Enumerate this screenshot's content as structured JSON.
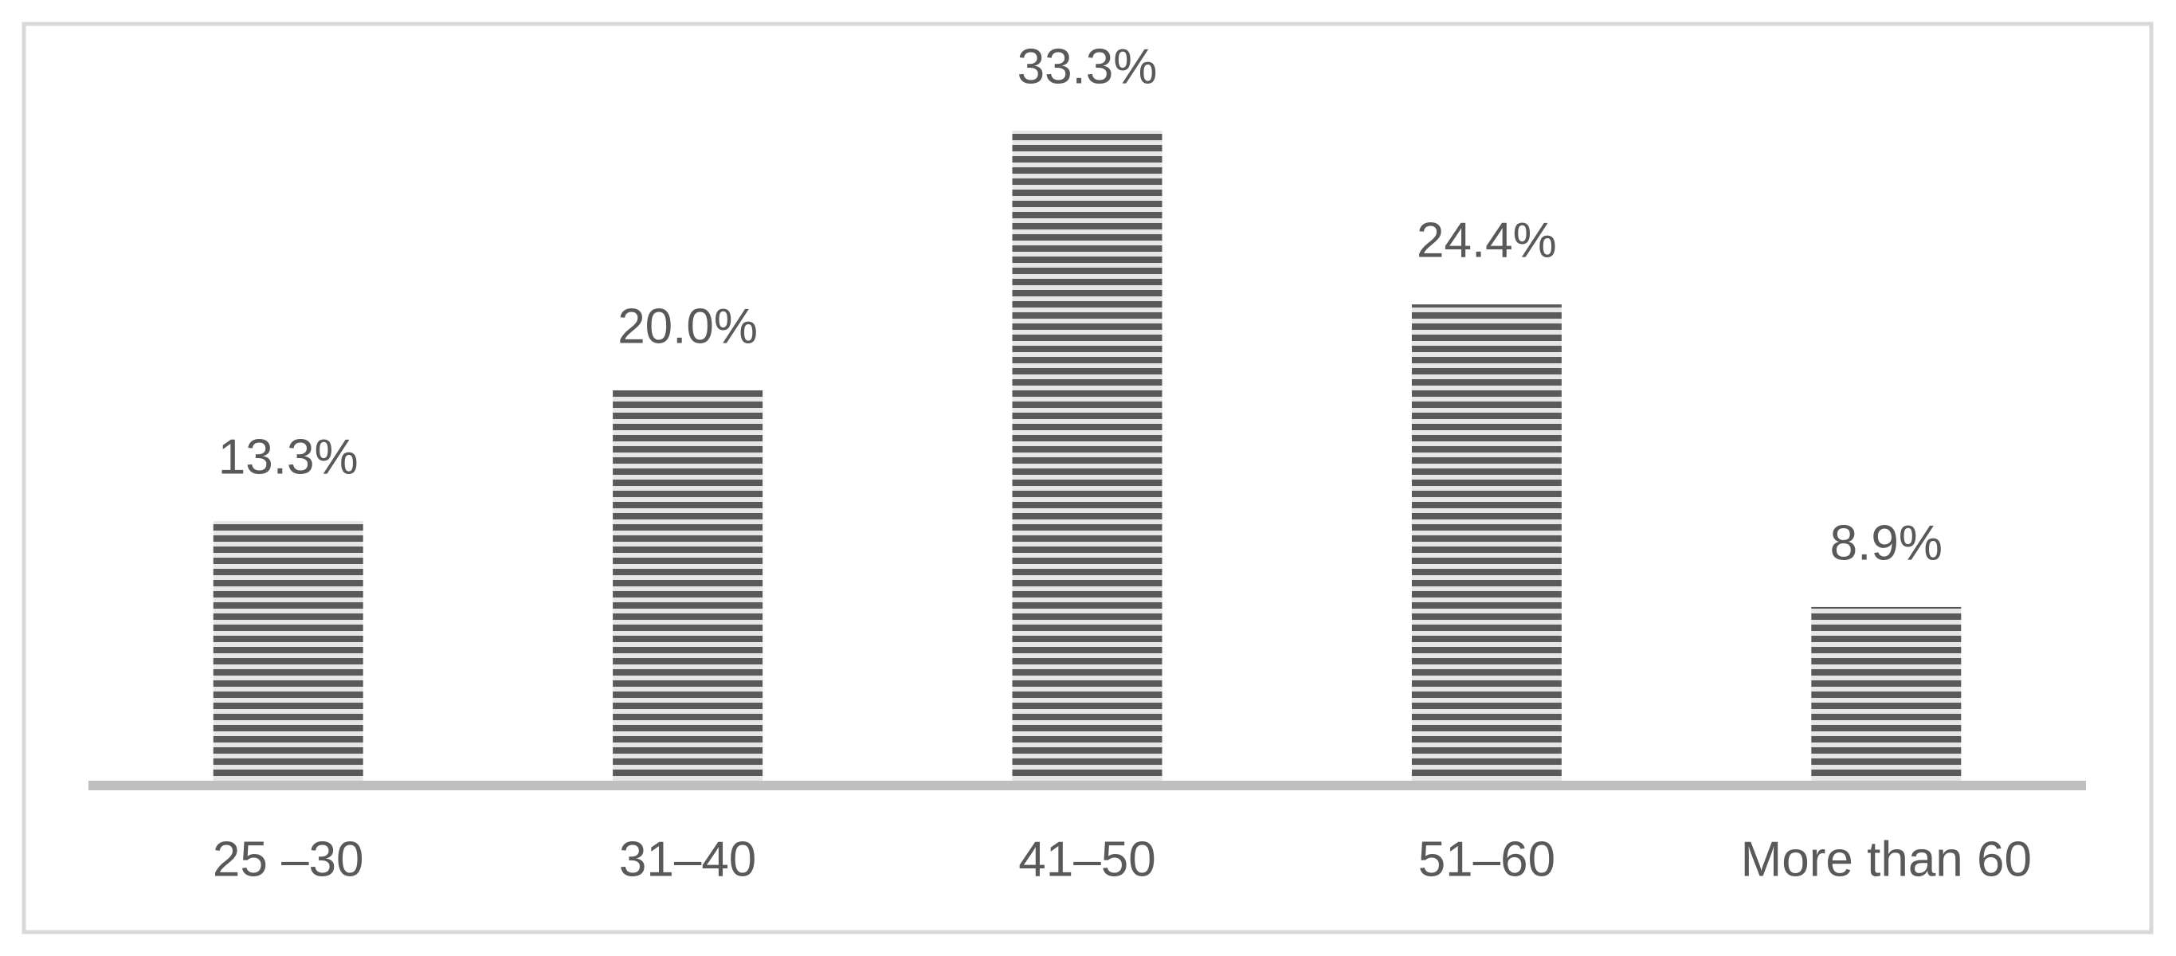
{
  "chart_data": {
    "type": "bar",
    "categories": [
      "25 –30",
      "31–40",
      "41–50",
      "51–60",
      "More than 60"
    ],
    "values": [
      13.3,
      20.0,
      33.3,
      24.4,
      8.9
    ],
    "value_labels": [
      "13.3%",
      "20.0%",
      "33.3%",
      "24.4%",
      "8.9%"
    ]
  }
}
